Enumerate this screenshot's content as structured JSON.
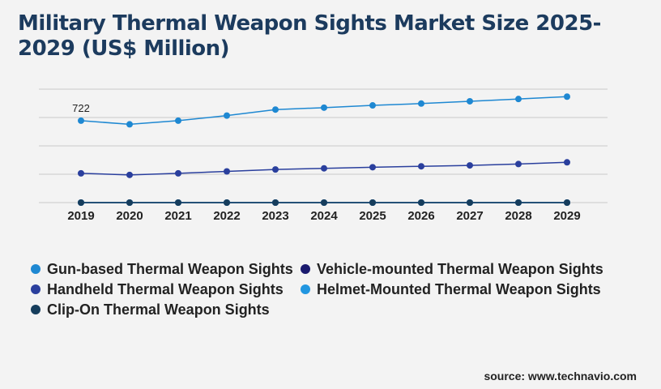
{
  "title": "Military Thermal Weapon Sights Market Size 2025-2029 (US$ Million)",
  "source": "source: www.technavio.com",
  "chart_data": {
    "type": "line",
    "title": "Military Thermal Weapon Sights Market Size 2025-2029 (US$ Million)",
    "categories": [
      "2019",
      "2020",
      "2021",
      "2022",
      "2023",
      "2024",
      "2025",
      "2026",
      "2027",
      "2028",
      "2029"
    ],
    "ylim": [
      0,
      1000
    ],
    "grid": true,
    "legend_position": "bottom",
    "data_labels": [
      {
        "series": 0,
        "index": 0,
        "text": "722"
      }
    ],
    "series": [
      {
        "name": "Gun-based Thermal Weapon Sights",
        "color": "#1e88d2",
        "values": [
          722,
          690,
          722,
          767,
          820,
          837,
          857,
          873,
          893,
          913,
          934
        ]
      },
      {
        "name": "Vehicle-mounted Thermal Weapon Sights",
        "color": "#1a1a6e",
        "values": [
          0,
          0,
          0,
          0,
          0,
          0,
          0,
          0,
          0,
          0,
          0
        ]
      },
      {
        "name": "Handheld Thermal Weapon Sights",
        "color": "#2a3f9d",
        "values": [
          258,
          244,
          258,
          275,
          292,
          302,
          312,
          320,
          328,
          340,
          355
        ]
      },
      {
        "name": "Helmet-Mounted Thermal Weapon Sights",
        "color": "#2196e0",
        "values": [
          0,
          0,
          0,
          0,
          0,
          0,
          0,
          0,
          0,
          0,
          0
        ]
      },
      {
        "name": "Clip-On Thermal Weapon Sights",
        "color": "#163d5c",
        "values": [
          0,
          0,
          0,
          0,
          0,
          0,
          0,
          0,
          0,
          0,
          0
        ]
      }
    ]
  }
}
